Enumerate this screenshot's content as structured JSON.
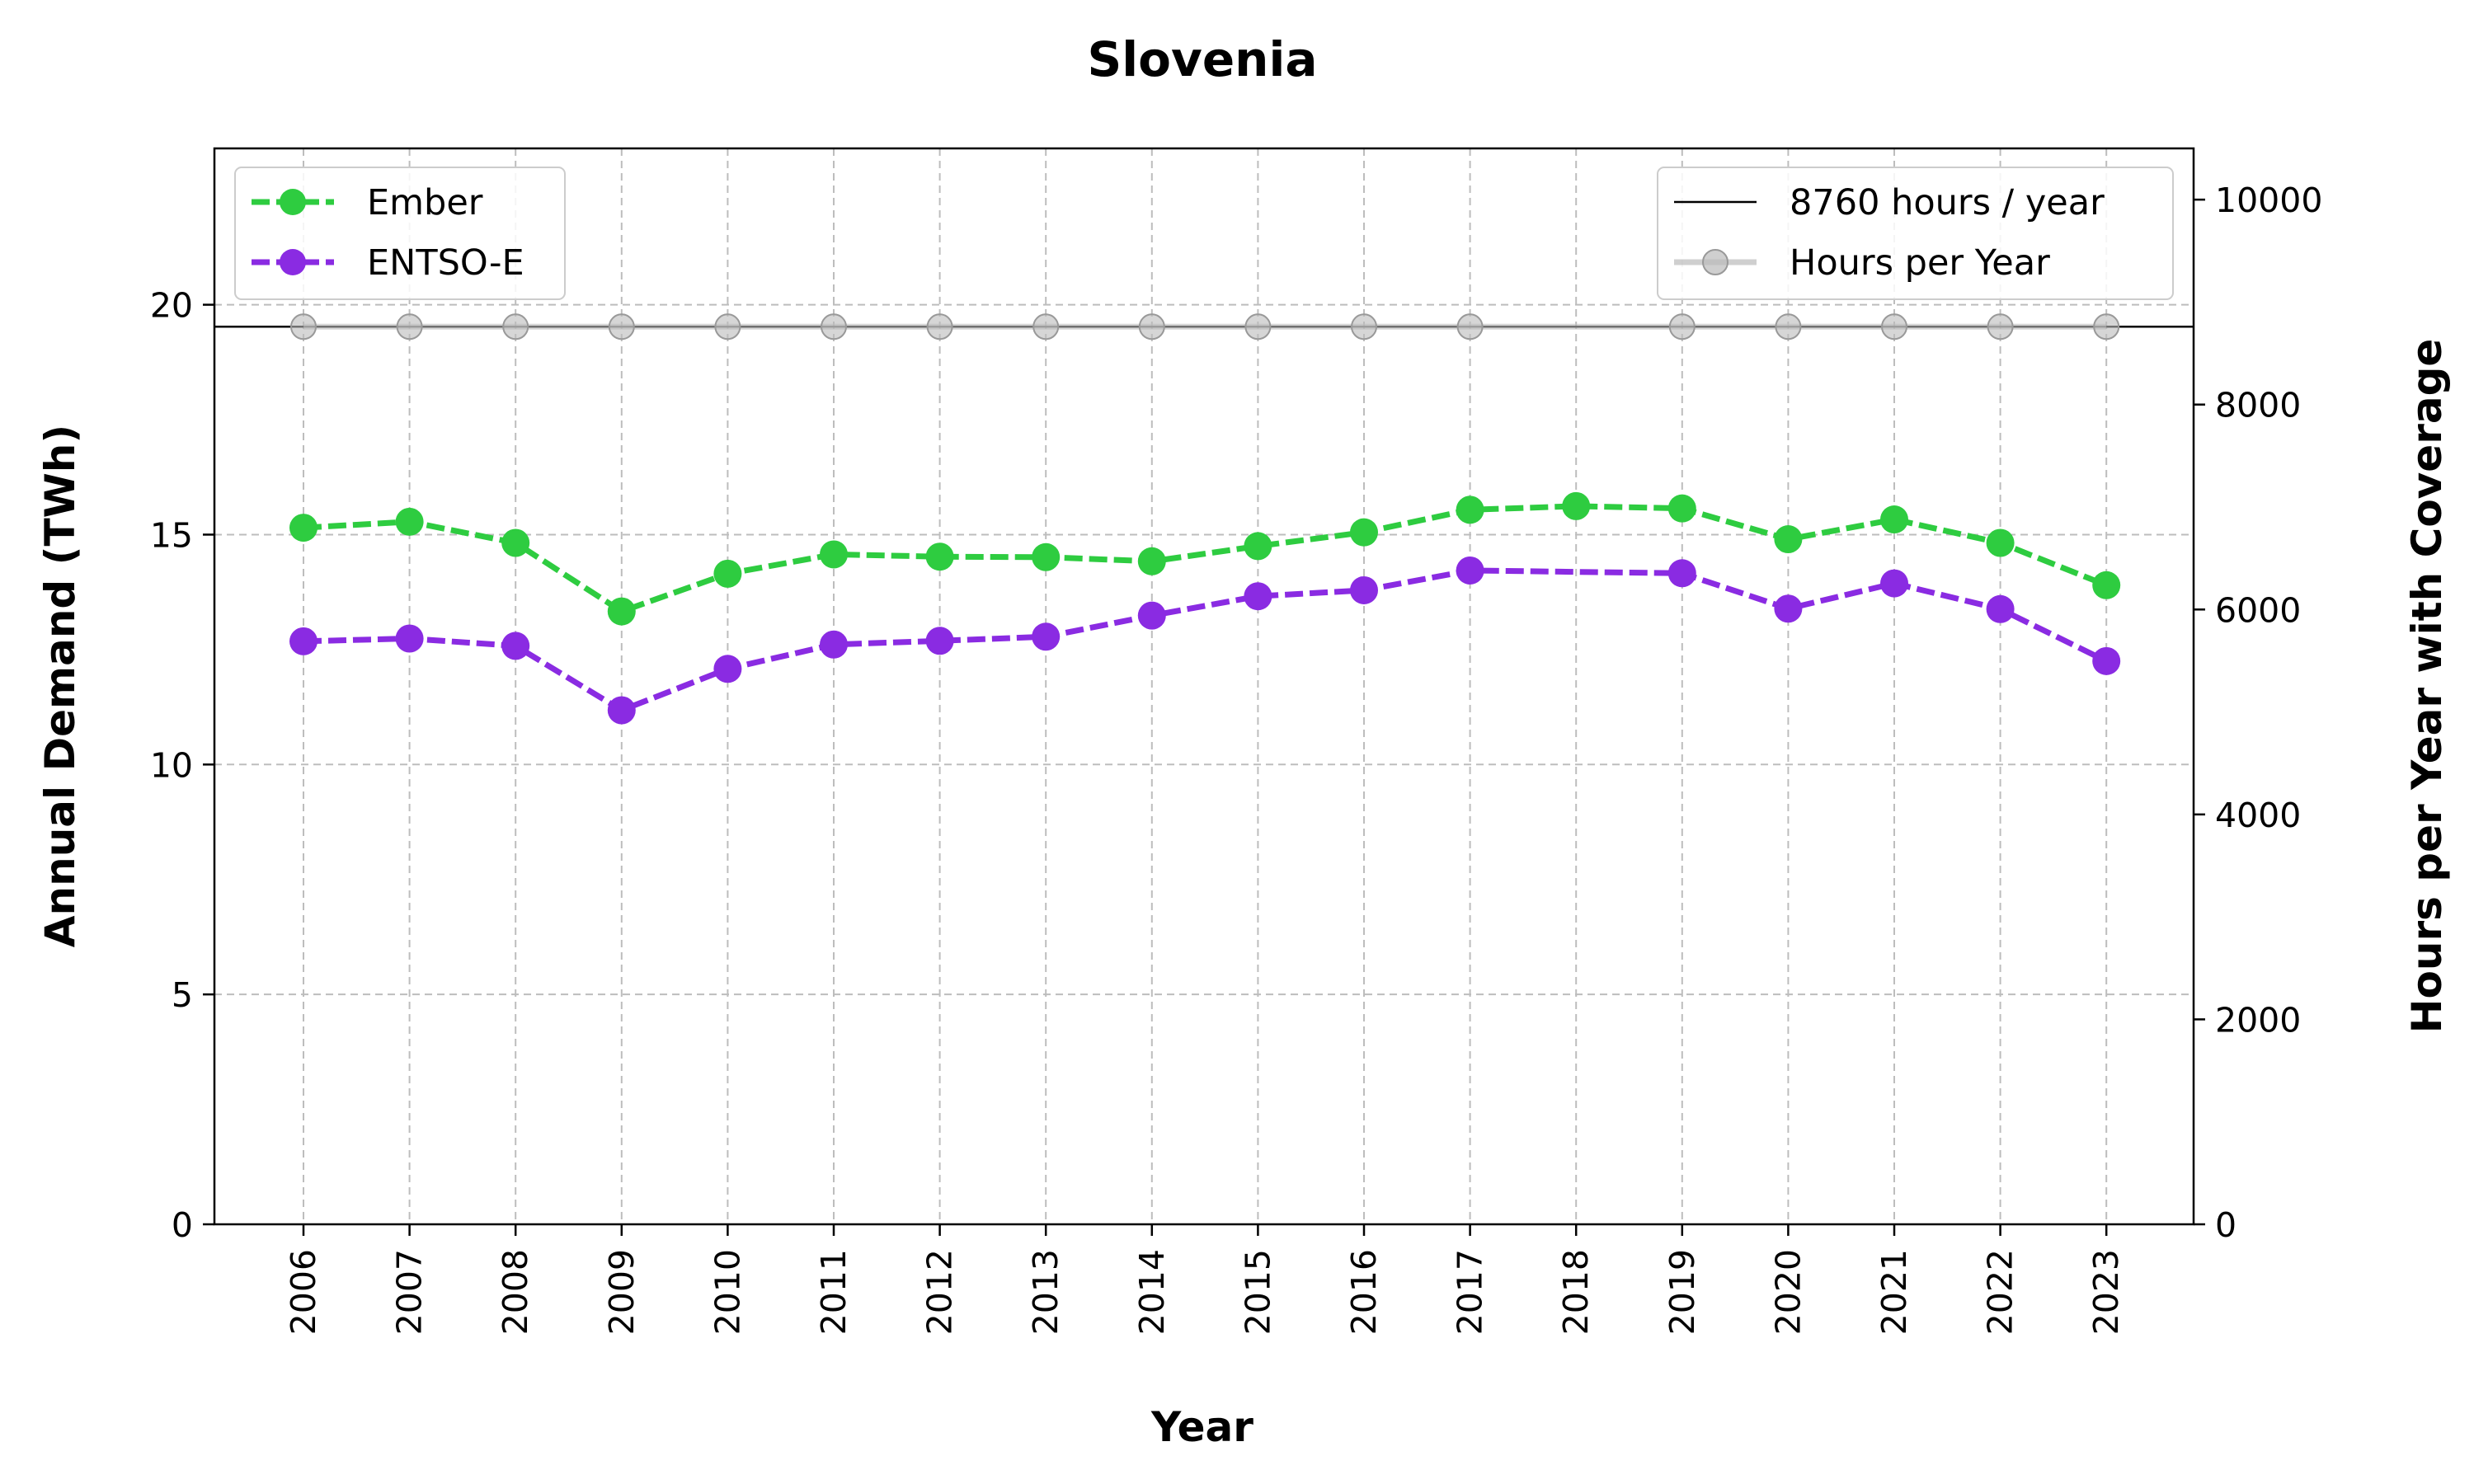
{
  "chart_data": {
    "type": "line",
    "title": "Slovenia",
    "xlabel": "Year",
    "ylabel": "Annual Demand (TWh)",
    "y2label": "Hours per Year with Coverage",
    "x": [
      "2006",
      "2007",
      "2008",
      "2009",
      "2010",
      "2011",
      "2012",
      "2013",
      "2014",
      "2015",
      "2016",
      "2017",
      "2018",
      "2019",
      "2020",
      "2021",
      "2022",
      "2023"
    ],
    "ylim": [
      0,
      23.4
    ],
    "y2lim": [
      0,
      10500
    ],
    "yticks": [
      "0",
      "5",
      "10",
      "15",
      "20"
    ],
    "y2ticks": [
      "0",
      "2000",
      "4000",
      "6000",
      "8000",
      "10000"
    ],
    "grid": true,
    "series": [
      {
        "name": "Ember",
        "axis": "left",
        "color": "#2ecc40",
        "style": "dashed",
        "values": [
          15.15,
          15.28,
          14.82,
          13.33,
          14.15,
          14.57,
          14.52,
          14.51,
          14.42,
          14.75,
          15.05,
          15.54,
          15.62,
          15.57,
          14.9,
          15.33,
          14.82,
          13.9
        ]
      },
      {
        "name": "ENTSO-E",
        "axis": "left",
        "color": "#8a2be2",
        "style": "dashed",
        "values": [
          12.68,
          12.74,
          12.58,
          11.18,
          12.08,
          12.61,
          12.69,
          12.78,
          13.24,
          13.66,
          13.79,
          14.22,
          null,
          14.16,
          13.39,
          13.94,
          13.38,
          12.25
        ]
      },
      {
        "name": "Hours per Year",
        "axis": "right",
        "color": "#bbbbbb",
        "style": "solid",
        "values": [
          8760,
          8760,
          8760,
          8760,
          8760,
          8760,
          8760,
          8760,
          8760,
          8760,
          8760,
          8760,
          null,
          8760,
          8760,
          8760,
          8760,
          8760
        ]
      },
      {
        "name": "8760 hours / year",
        "axis": "right",
        "color": "#000000",
        "style": "hline",
        "value": 8760
      }
    ],
    "legend_left": [
      "Ember",
      "ENTSO-E"
    ],
    "legend_right": [
      "8760 hours / year",
      "Hours per Year"
    ],
    "legend_placement": [
      "top-left",
      "top-right"
    ]
  }
}
